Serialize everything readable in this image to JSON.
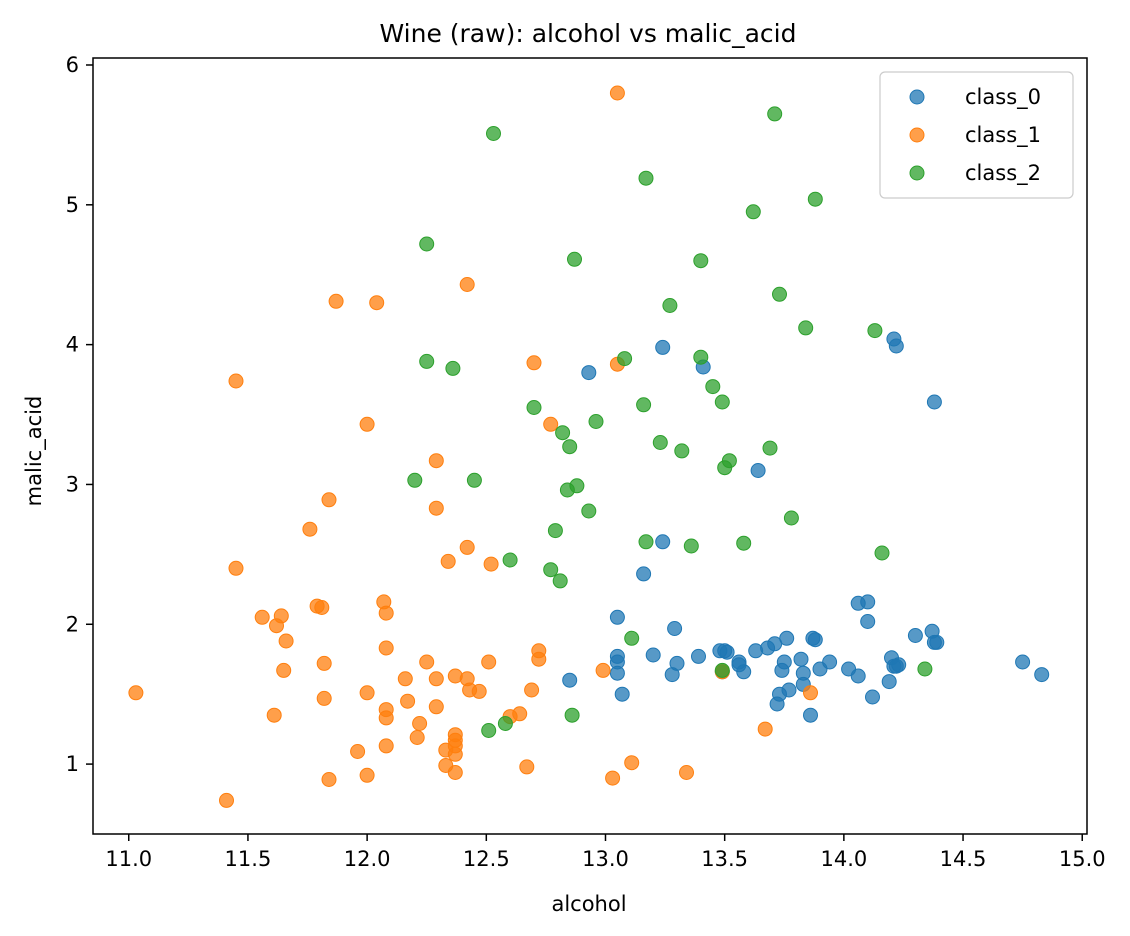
{
  "chart_data": {
    "type": "scatter",
    "title": "Wine (raw): alcohol vs malic_acid",
    "xlabel": "alcohol",
    "ylabel": "malic_acid",
    "xlim": [
      10.85,
      15.02
    ],
    "ylim": [
      0.5,
      6.05
    ],
    "xticks": [
      11.0,
      11.5,
      12.0,
      12.5,
      13.0,
      13.5,
      14.0,
      14.5,
      15.0
    ],
    "xtick_labels": [
      "11.0",
      "11.5",
      "12.0",
      "12.5",
      "13.0",
      "13.5",
      "14.0",
      "14.5",
      "15.0"
    ],
    "yticks": [
      1,
      2,
      3,
      4,
      5,
      6
    ],
    "ytick_labels": [
      "1",
      "2",
      "3",
      "4",
      "5",
      "6"
    ],
    "legend_position": "top-right",
    "series": [
      {
        "name": "class_0",
        "color": "#1f77b4",
        "points": [
          [
            13.24,
            3.98
          ],
          [
            14.21,
            4.04
          ],
          [
            14.22,
            3.99
          ],
          [
            14.38,
            3.59
          ],
          [
            12.93,
            3.8
          ],
          [
            13.41,
            3.84
          ],
          [
            13.64,
            3.1
          ],
          [
            13.24,
            2.59
          ],
          [
            13.16,
            2.36
          ],
          [
            13.05,
            2.05
          ],
          [
            14.06,
            2.15
          ],
          [
            14.1,
            2.16
          ],
          [
            14.1,
            2.02
          ],
          [
            14.37,
            1.95
          ],
          [
            14.3,
            1.92
          ],
          [
            13.29,
            1.97
          ],
          [
            14.39,
            1.87
          ],
          [
            14.38,
            1.87
          ],
          [
            13.87,
            1.9
          ],
          [
            13.88,
            1.89
          ],
          [
            13.76,
            1.9
          ],
          [
            13.71,
            1.86
          ],
          [
            13.68,
            1.83
          ],
          [
            13.63,
            1.81
          ],
          [
            13.51,
            1.8
          ],
          [
            13.48,
            1.81
          ],
          [
            13.5,
            1.81
          ],
          [
            13.56,
            1.73
          ],
          [
            13.56,
            1.71
          ],
          [
            13.58,
            1.66
          ],
          [
            13.2,
            1.78
          ],
          [
            13.05,
            1.77
          ],
          [
            13.05,
            1.73
          ],
          [
            13.05,
            1.65
          ],
          [
            13.3,
            1.72
          ],
          [
            13.39,
            1.77
          ],
          [
            13.28,
            1.64
          ],
          [
            13.75,
            1.73
          ],
          [
            13.74,
            1.67
          ],
          [
            13.82,
            1.75
          ],
          [
            13.9,
            1.68
          ],
          [
            13.94,
            1.73
          ],
          [
            14.02,
            1.68
          ],
          [
            14.06,
            1.63
          ],
          [
            14.2,
            1.76
          ],
          [
            14.22,
            1.7
          ],
          [
            14.23,
            1.71
          ],
          [
            14.21,
            1.7
          ],
          [
            14.19,
            1.59
          ],
          [
            14.12,
            1.48
          ],
          [
            13.83,
            1.65
          ],
          [
            13.83,
            1.57
          ],
          [
            13.77,
            1.53
          ],
          [
            13.73,
            1.5
          ],
          [
            13.72,
            1.43
          ],
          [
            13.86,
            1.35
          ],
          [
            14.75,
            1.73
          ],
          [
            14.83,
            1.64
          ],
          [
            12.85,
            1.6
          ],
          [
            13.07,
            1.5
          ],
          [
            13.49,
            1.66
          ]
        ]
      },
      {
        "name": "class_1",
        "color": "#ff7f0e",
        "points": [
          [
            13.05,
            5.8
          ],
          [
            12.42,
            4.43
          ],
          [
            11.87,
            4.31
          ],
          [
            12.04,
            4.3
          ],
          [
            11.45,
            3.74
          ],
          [
            12.7,
            3.87
          ],
          [
            13.05,
            3.86
          ],
          [
            12.0,
            3.43
          ],
          [
            12.77,
            3.43
          ],
          [
            12.29,
            3.17
          ],
          [
            11.84,
            2.89
          ],
          [
            12.29,
            2.83
          ],
          [
            11.76,
            2.68
          ],
          [
            12.42,
            2.55
          ],
          [
            12.34,
            2.45
          ],
          [
            12.52,
            2.43
          ],
          [
            11.45,
            2.4
          ],
          [
            12.07,
            2.16
          ],
          [
            11.79,
            2.13
          ],
          [
            11.81,
            2.12
          ],
          [
            12.08,
            2.08
          ],
          [
            11.56,
            2.05
          ],
          [
            11.64,
            2.06
          ],
          [
            11.62,
            1.99
          ],
          [
            11.66,
            1.88
          ],
          [
            12.08,
            1.83
          ],
          [
            12.72,
            1.81
          ],
          [
            12.72,
            1.75
          ],
          [
            12.25,
            1.73
          ],
          [
            12.51,
            1.73
          ],
          [
            11.82,
            1.72
          ],
          [
            11.65,
            1.67
          ],
          [
            12.99,
            1.67
          ],
          [
            13.49,
            1.66
          ],
          [
            12.16,
            1.61
          ],
          [
            12.29,
            1.61
          ],
          [
            12.37,
            1.63
          ],
          [
            12.42,
            1.61
          ],
          [
            12.43,
            1.53
          ],
          [
            12.47,
            1.52
          ],
          [
            12.69,
            1.53
          ],
          [
            13.86,
            1.51
          ],
          [
            11.03,
            1.51
          ],
          [
            12.0,
            1.51
          ],
          [
            11.82,
            1.47
          ],
          [
            12.17,
            1.45
          ],
          [
            12.29,
            1.41
          ],
          [
            12.08,
            1.39
          ],
          [
            12.08,
            1.33
          ],
          [
            11.61,
            1.35
          ],
          [
            12.6,
            1.34
          ],
          [
            12.64,
            1.36
          ],
          [
            12.22,
            1.29
          ],
          [
            12.37,
            1.21
          ],
          [
            12.21,
            1.19
          ],
          [
            12.37,
            1.17
          ],
          [
            12.37,
            1.13
          ],
          [
            12.08,
            1.13
          ],
          [
            12.37,
            1.07
          ],
          [
            12.33,
            1.1
          ],
          [
            11.96,
            1.09
          ],
          [
            12.33,
            0.99
          ],
          [
            12.67,
            0.98
          ],
          [
            13.11,
            1.01
          ],
          [
            12.37,
            0.94
          ],
          [
            13.34,
            0.94
          ],
          [
            11.84,
            0.89
          ],
          [
            12.0,
            0.92
          ],
          [
            13.03,
            0.9
          ],
          [
            11.41,
            0.74
          ],
          [
            13.67,
            1.25
          ]
        ]
      },
      {
        "name": "class_2",
        "color": "#2ca02c",
        "points": [
          [
            13.71,
            5.65
          ],
          [
            12.53,
            5.51
          ],
          [
            13.17,
            5.19
          ],
          [
            13.88,
            5.04
          ],
          [
            13.62,
            4.95
          ],
          [
            12.25,
            4.72
          ],
          [
            12.87,
            4.61
          ],
          [
            13.4,
            4.6
          ],
          [
            13.73,
            4.36
          ],
          [
            13.27,
            4.28
          ],
          [
            13.84,
            4.12
          ],
          [
            14.13,
            4.1
          ],
          [
            13.08,
            3.9
          ],
          [
            13.4,
            3.91
          ],
          [
            12.25,
            3.88
          ],
          [
            12.36,
            3.83
          ],
          [
            13.45,
            3.7
          ],
          [
            13.49,
            3.59
          ],
          [
            13.16,
            3.57
          ],
          [
            12.7,
            3.55
          ],
          [
            12.96,
            3.45
          ],
          [
            12.82,
            3.37
          ],
          [
            12.85,
            3.27
          ],
          [
            13.23,
            3.3
          ],
          [
            13.32,
            3.24
          ],
          [
            13.69,
            3.26
          ],
          [
            13.52,
            3.17
          ],
          [
            13.5,
            3.12
          ],
          [
            12.2,
            3.03
          ],
          [
            12.45,
            3.03
          ],
          [
            12.88,
            2.99
          ],
          [
            12.84,
            2.96
          ],
          [
            12.93,
            2.81
          ],
          [
            13.78,
            2.76
          ],
          [
            12.79,
            2.67
          ],
          [
            13.17,
            2.59
          ],
          [
            13.36,
            2.56
          ],
          [
            13.58,
            2.58
          ],
          [
            14.16,
            2.51
          ],
          [
            12.6,
            2.46
          ],
          [
            12.77,
            2.39
          ],
          [
            12.81,
            2.31
          ],
          [
            13.11,
            1.9
          ],
          [
            14.34,
            1.68
          ],
          [
            12.86,
            1.35
          ],
          [
            12.58,
            1.29
          ],
          [
            12.51,
            1.24
          ],
          [
            13.49,
            1.67
          ]
        ]
      }
    ]
  }
}
